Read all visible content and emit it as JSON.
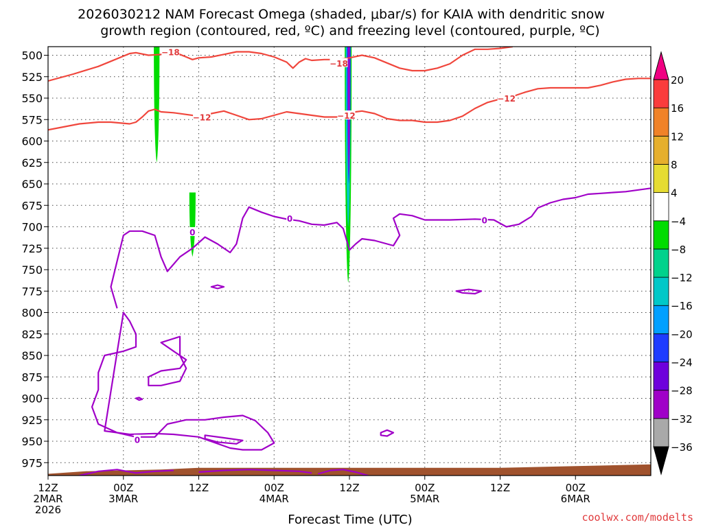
{
  "chart_data": {
    "type": "heatmap",
    "title_line1": "2026030212 NAM Forecast Omega (shaded, μbar/s) for KAIA with dendritic snow",
    "title_line2": "growth region (contoured, red, ºC) and freezing level (contoured, purple, ºC)",
    "xlabel": "Forecast Time (UTC)",
    "credit": "coolwx.com/modelts",
    "xlim": [
      0,
      96
    ],
    "ylim": [
      990,
      490
    ],
    "y_ticks": [
      500,
      525,
      550,
      575,
      600,
      625,
      650,
      675,
      700,
      725,
      750,
      775,
      800,
      825,
      850,
      875,
      900,
      925,
      950,
      975
    ],
    "x_ticks": [
      {
        "hour": 0,
        "lines": [
          "12Z",
          "2MAR",
          "2026"
        ]
      },
      {
        "hour": 12,
        "lines": [
          "00Z",
          "3MAR"
        ]
      },
      {
        "hour": 24,
        "lines": [
          "12Z"
        ]
      },
      {
        "hour": 36,
        "lines": [
          "00Z",
          "4MAR"
        ]
      },
      {
        "hour": 48,
        "lines": [
          "12Z"
        ]
      },
      {
        "hour": 60,
        "lines": [
          "00Z",
          "5MAR"
        ]
      },
      {
        "hour": 72,
        "lines": [
          "12Z"
        ]
      },
      {
        "hour": 84,
        "lines": [
          "00Z",
          "6MAR"
        ]
      }
    ],
    "colorbar": {
      "levels": [
        -36,
        -32,
        -28,
        -24,
        -20,
        -16,
        -12,
        -8,
        -4,
        4,
        8,
        12,
        16,
        20
      ],
      "labels": [
        "20",
        "16",
        "12",
        "8",
        "4",
        "−4",
        "−8",
        "−12",
        "−16",
        "−20",
        "−24",
        "−28",
        "−32",
        "−36"
      ],
      "colors": [
        "#000000",
        "#a9a9a9",
        "#a000c8",
        "#6e00dc",
        "#1e3cff",
        "#00a0ff",
        "#00c8c8",
        "#00d28c",
        "#00dc00",
        "#ffffff",
        "#e6dc32",
        "#e6af2d",
        "#f08228",
        "#fa3c3c",
        "#f00082"
      ]
    },
    "omega_blobs": [
      {
        "hour": 17.3,
        "p_top": 490,
        "p_bot": 625,
        "half_width_h": 0.45,
        "color": "#00dc00"
      },
      {
        "hour": 23.0,
        "p_top": 660,
        "p_bot": 735,
        "half_width_h": 0.5,
        "color": "#00dc00"
      },
      {
        "hour": 47.8,
        "p_top": 490,
        "p_bot": 765,
        "half_width_h": 0.55,
        "color": "#00dc00"
      },
      {
        "hour": 47.8,
        "p_top": 490,
        "p_bot": 700,
        "half_width_h": 0.4,
        "color": "#00c8c8"
      },
      {
        "hour": 47.9,
        "p_top": 490,
        "p_bot": 650,
        "half_width_h": 0.3,
        "color": "#1e3cff"
      },
      {
        "hour": 47.9,
        "p_top": 490,
        "p_bot": 640,
        "half_width_h": 0.15,
        "color": "#a000c8"
      }
    ],
    "terrain_color": "#a0522d",
    "terrain": [
      [
        0,
        988
      ],
      [
        6,
        985
      ],
      [
        12,
        984
      ],
      [
        18,
        983
      ],
      [
        24,
        981
      ],
      [
        36,
        981
      ],
      [
        48,
        981
      ],
      [
        60,
        981
      ],
      [
        72,
        981
      ],
      [
        78,
        980
      ],
      [
        84,
        979
      ],
      [
        90,
        978
      ],
      [
        96,
        977
      ]
    ],
    "red_contours": [
      {
        "level": -18,
        "points": [
          [
            0,
            530
          ],
          [
            4,
            522
          ],
          [
            8,
            513
          ],
          [
            10,
            507
          ],
          [
            13,
            498
          ],
          [
            14,
            497
          ],
          [
            16,
            500
          ],
          [
            18,
            499
          ],
          [
            19,
            500
          ],
          [
            21,
            499
          ],
          [
            22,
            502
          ],
          [
            23,
            505
          ],
          [
            24,
            503
          ],
          [
            26,
            502
          ],
          [
            28,
            499
          ],
          [
            30,
            496
          ],
          [
            32,
            496
          ],
          [
            34,
            498
          ],
          [
            36,
            502
          ],
          [
            38,
            508
          ],
          [
            39,
            515
          ],
          [
            40,
            508
          ],
          [
            41,
            504
          ],
          [
            42,
            506
          ],
          [
            44,
            505
          ],
          [
            46,
            505
          ],
          [
            48,
            503
          ],
          [
            50,
            500
          ],
          [
            52,
            503
          ],
          [
            54,
            509
          ],
          [
            56,
            515
          ],
          [
            58,
            518
          ],
          [
            60,
            518
          ],
          [
            62,
            515
          ],
          [
            64,
            510
          ],
          [
            66,
            500
          ],
          [
            68,
            493
          ],
          [
            70,
            493
          ],
          [
            72,
            492
          ],
          [
            74,
            490
          ]
        ]
      },
      {
        "level": -12,
        "points": [
          [
            0,
            587
          ],
          [
            5,
            580
          ],
          [
            8,
            578
          ],
          [
            10,
            578
          ],
          [
            13,
            580
          ],
          [
            14,
            578
          ],
          [
            15,
            572
          ],
          [
            16,
            565
          ],
          [
            17,
            563
          ],
          [
            18,
            566
          ],
          [
            20,
            567
          ],
          [
            22,
            569
          ],
          [
            24,
            571
          ],
          [
            26,
            568
          ],
          [
            28,
            565
          ],
          [
            30,
            570
          ],
          [
            32,
            575
          ],
          [
            34,
            574
          ],
          [
            36,
            570
          ],
          [
            38,
            566
          ],
          [
            40,
            568
          ],
          [
            42,
            570
          ],
          [
            44,
            572
          ],
          [
            46,
            572
          ],
          [
            48,
            568
          ],
          [
            49,
            566
          ],
          [
            50,
            565
          ],
          [
            52,
            568
          ],
          [
            54,
            574
          ],
          [
            56,
            576
          ],
          [
            58,
            576
          ],
          [
            60,
            578
          ],
          [
            62,
            578
          ],
          [
            64,
            576
          ],
          [
            66,
            571
          ],
          [
            68,
            562
          ],
          [
            70,
            555
          ],
          [
            72,
            551
          ],
          [
            74,
            548
          ],
          [
            76,
            543
          ],
          [
            78,
            539
          ],
          [
            80,
            538
          ],
          [
            82,
            538
          ],
          [
            84,
            538
          ],
          [
            86,
            538
          ],
          [
            88,
            535
          ],
          [
            90,
            531
          ],
          [
            92,
            528
          ],
          [
            94,
            527
          ],
          [
            96,
            527
          ]
        ]
      }
    ],
    "purple_contours": [
      {
        "level": 0,
        "points": [
          [
            11,
            795
          ],
          [
            10,
            770
          ],
          [
            11,
            740
          ],
          [
            12,
            710
          ],
          [
            13,
            705
          ],
          [
            15,
            705
          ],
          [
            17,
            710
          ],
          [
            18,
            735
          ],
          [
            19,
            752
          ],
          [
            21,
            735
          ],
          [
            23,
            725
          ],
          [
            25,
            712
          ],
          [
            27,
            720
          ],
          [
            29,
            730
          ],
          [
            30,
            720
          ],
          [
            31,
            690
          ],
          [
            32,
            677
          ],
          [
            34,
            683
          ],
          [
            36,
            688
          ],
          [
            38,
            691
          ],
          [
            40,
            693
          ],
          [
            42,
            697
          ],
          [
            44,
            698
          ],
          [
            46,
            695
          ],
          [
            47,
            702
          ],
          [
            48,
            727
          ],
          [
            49,
            720
          ],
          [
            50,
            714
          ],
          [
            52,
            716
          ],
          [
            55,
            722
          ],
          [
            56,
            710
          ],
          [
            55,
            690
          ],
          [
            56,
            685
          ],
          [
            58,
            687
          ],
          [
            60,
            692
          ],
          [
            64,
            692
          ],
          [
            68,
            691
          ],
          [
            71,
            692
          ],
          [
            73,
            700
          ],
          [
            75,
            697
          ],
          [
            77,
            688
          ],
          [
            78,
            678
          ],
          [
            80,
            672
          ],
          [
            82,
            668
          ],
          [
            84,
            666
          ],
          [
            86,
            662
          ],
          [
            88,
            661
          ],
          [
            90,
            660
          ],
          [
            92,
            659
          ],
          [
            94,
            657
          ],
          [
            96,
            655
          ]
        ]
      },
      {
        "level": 0,
        "closed": true,
        "points": [
          [
            12,
            800
          ],
          [
            13,
            810
          ],
          [
            14,
            825
          ],
          [
            14,
            840
          ],
          [
            12,
            845
          ],
          [
            9,
            850
          ],
          [
            8,
            870
          ],
          [
            8,
            890
          ],
          [
            7,
            910
          ],
          [
            8,
            930
          ],
          [
            11,
            940
          ],
          [
            14,
            945
          ],
          [
            17,
            945
          ],
          [
            19,
            930
          ],
          [
            22,
            925
          ],
          [
            25,
            925
          ],
          [
            28,
            922
          ],
          [
            31,
            920
          ],
          [
            33,
            926
          ],
          [
            35,
            940
          ],
          [
            36,
            952
          ],
          [
            34,
            960
          ],
          [
            31,
            960
          ],
          [
            29,
            958
          ],
          [
            24,
            945
          ],
          [
            20,
            942
          ],
          [
            17,
            941
          ],
          [
            13,
            942
          ],
          [
            9,
            938
          ]
        ]
      },
      {
        "level": 0,
        "closed": true,
        "points": [
          [
            16,
            875
          ],
          [
            18,
            868
          ],
          [
            21,
            865
          ],
          [
            22,
            855
          ],
          [
            20,
            845
          ],
          [
            18,
            835
          ],
          [
            21,
            828
          ],
          [
            21,
            840
          ],
          [
            21,
            850
          ],
          [
            22,
            865
          ],
          [
            21,
            880
          ],
          [
            18,
            885
          ],
          [
            16,
            885
          ]
        ]
      },
      {
        "level": 0,
        "closed": true,
        "points": [
          [
            25,
            943
          ],
          [
            28,
            946
          ],
          [
            31,
            949
          ],
          [
            30,
            953
          ],
          [
            27,
            951
          ],
          [
            25,
            947
          ]
        ]
      },
      {
        "level": 0,
        "closed": true,
        "points": [
          [
            27,
            768
          ],
          [
            28,
            770
          ],
          [
            27,
            772
          ],
          [
            26,
            770
          ]
        ]
      },
      {
        "level": 0,
        "closed": true,
        "points": [
          [
            65,
            775
          ],
          [
            67,
            773
          ],
          [
            69,
            775
          ],
          [
            68,
            778
          ],
          [
            66,
            777
          ]
        ]
      },
      {
        "level": 0,
        "closed": true,
        "points": [
          [
            53,
            940
          ],
          [
            54,
            937
          ],
          [
            55,
            940
          ],
          [
            54,
            944
          ],
          [
            53,
            943
          ]
        ]
      },
      {
        "level": 0,
        "closed": true,
        "points": [
          [
            14,
            900
          ],
          [
            14.5,
            899
          ],
          [
            15,
            901
          ],
          [
            14.5,
            902
          ]
        ]
      },
      {
        "level": 0,
        "points": [
          [
            5,
            990
          ],
          [
            8,
            985
          ],
          [
            11,
            983
          ],
          [
            14,
            987
          ],
          [
            17,
            985
          ],
          [
            20,
            984
          ]
        ]
      },
      {
        "level": 0,
        "points": [
          [
            24,
            986
          ],
          [
            28,
            984
          ],
          [
            32,
            983
          ],
          [
            36,
            984
          ],
          [
            40,
            985
          ],
          [
            42,
            987
          ]
        ]
      },
      {
        "level": 0,
        "points": [
          [
            43,
            988
          ],
          [
            45,
            984
          ],
          [
            47,
            983
          ],
          [
            49,
            986
          ],
          [
            51,
            990
          ]
        ]
      }
    ],
    "contour_labels": [
      {
        "text": "−18",
        "hour": 19.5,
        "p": 496,
        "color": "#e0393b"
      },
      {
        "text": "−18",
        "hour": 46.3,
        "p": 509,
        "color": "#e0393b"
      },
      {
        "text": "−12",
        "hour": 24.5,
        "p": 572,
        "color": "#e0393b"
      },
      {
        "text": "−12",
        "hour": 47.5,
        "p": 570,
        "color": "#e0393b"
      },
      {
        "text": "−12",
        "hour": 73.0,
        "p": 550,
        "color": "#e0393b"
      },
      {
        "text": "0",
        "hour": 23.0,
        "p": 706,
        "color": "#a000c8"
      },
      {
        "text": "0",
        "hour": 38.5,
        "p": 690,
        "color": "#a000c8"
      },
      {
        "text": "0",
        "hour": 69.5,
        "p": 692,
        "color": "#a000c8"
      },
      {
        "text": "0",
        "hour": 14.2,
        "p": 948,
        "color": "#a000c8"
      }
    ]
  }
}
